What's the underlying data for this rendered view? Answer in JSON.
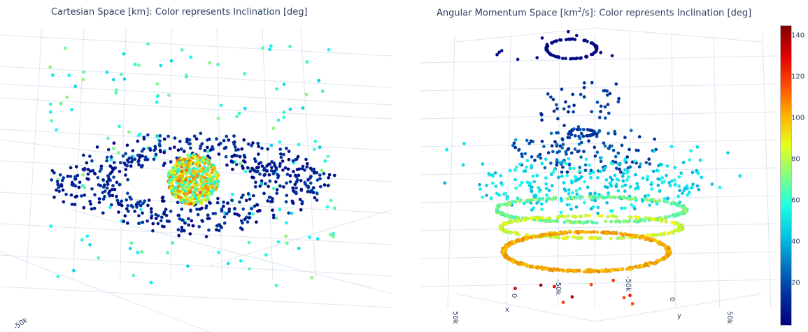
{
  "titles": {
    "left": "Cartesian Space [km]: Color represents Inclination [deg]",
    "right_prefix": "Angular Momentum Space [km",
    "right_sup": "2",
    "right_suffix": "/s]: Color represents Inclination [deg]"
  },
  "chart_data": [
    {
      "type": "scatter",
      "subtype": "3d-scatter",
      "title": "Cartesian Space [km]: Color represents Inclination [deg]",
      "color_variable": "Inclination [deg]",
      "axis_tick_labels": [
        "-50k"
      ],
      "clusters": [
        {
          "shape": "sphere-core",
          "inclination_range": [
            60,
            110
          ],
          "approx_points": 500
        },
        {
          "shape": "equatorial-ring",
          "inclination_range": [
            0,
            20
          ],
          "approx_points": 550
        },
        {
          "shape": "scattered-halo",
          "inclination_range": [
            40,
            75
          ],
          "approx_points": 160
        }
      ]
    },
    {
      "type": "scatter",
      "subtype": "3d-scatter",
      "title": "Angular Momentum Space [km2/s]: Color represents Inclination [deg]",
      "color_variable": "Inclination [deg]",
      "axis_tick_labels": [
        "50k",
        "0",
        "-50k",
        "-50k",
        "0",
        "50k"
      ],
      "axis_labels": {
        "x": "x",
        "y": "y"
      },
      "clusters": [
        {
          "shape": "ring",
          "inclination_range": [
            0,
            8
          ],
          "approx_points": 80
        },
        {
          "shape": "ring",
          "inclination_range": [
            10,
            25
          ],
          "approx_points": 60
        },
        {
          "shape": "disk-band",
          "inclination_range": [
            25,
            50
          ],
          "approx_points": 200
        },
        {
          "shape": "disk-band",
          "inclination_range": [
            50,
            70
          ],
          "approx_points": 250
        },
        {
          "shape": "ring",
          "inclination_range": [
            70,
            85
          ],
          "approx_points": 300
        },
        {
          "shape": "ring",
          "inclination_range": [
            85,
            100
          ],
          "approx_points": 200
        },
        {
          "shape": "ring",
          "inclination_range": [
            95,
            110
          ],
          "approx_points": 500
        },
        {
          "shape": "outliers",
          "inclination_range": [
            110,
            145
          ],
          "approx_points": 10
        }
      ]
    }
  ],
  "colorbar": {
    "range": [
      0,
      145
    ],
    "ticks": [
      20,
      40,
      60,
      80,
      100,
      120,
      140
    ],
    "colorscale": "Jet"
  },
  "axis_labels": {
    "left_corner_tick": "-50k",
    "right_ticks": [
      "50k",
      "x",
      "0",
      "-50k",
      "-50k",
      "0",
      "y",
      "50k"
    ]
  }
}
